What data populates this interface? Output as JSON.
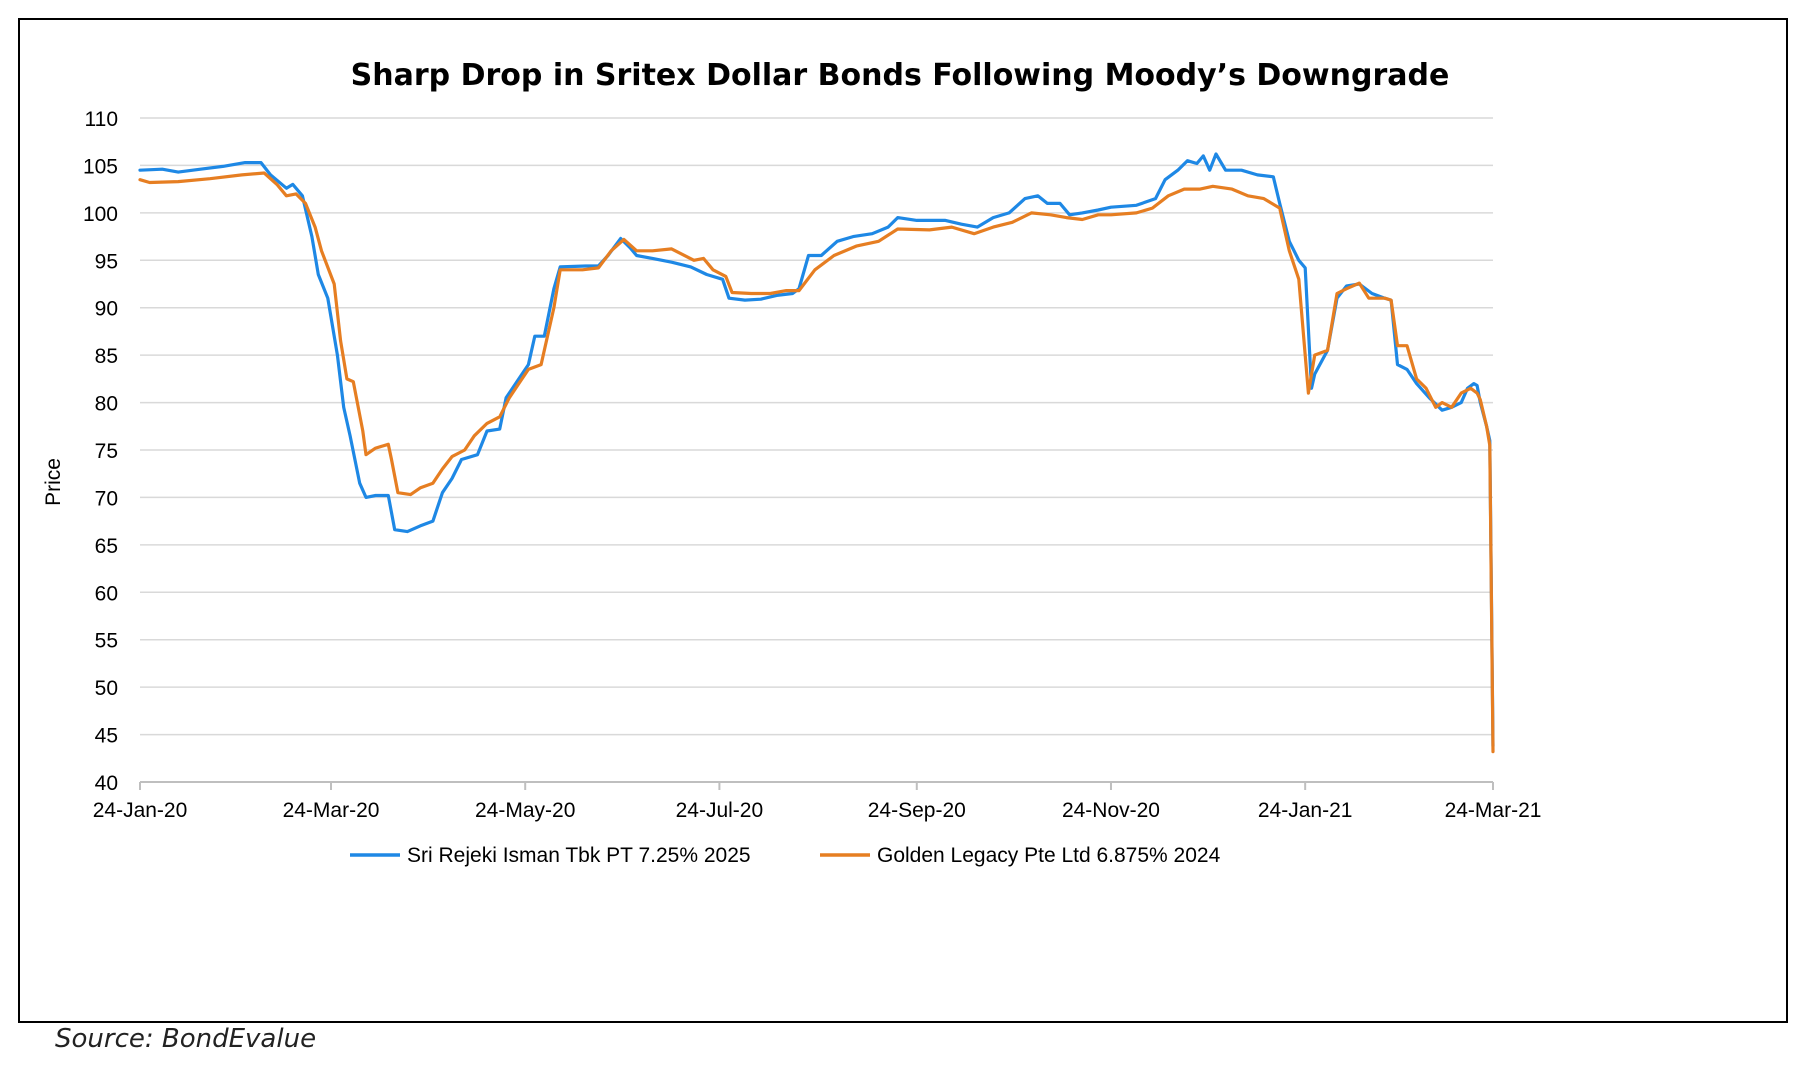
{
  "source_note": "Source: BondEvalue",
  "colors": {
    "series1": "#1e88e5",
    "series2": "#e67e22",
    "grid": "#d9d9d9",
    "axis": "#bfbfbf",
    "text": "#000000"
  },
  "chart_data": {
    "type": "line",
    "title": "Sharp Drop in Sritex Dollar Bonds Following Moody’s Downgrade",
    "xlabel": "",
    "ylabel": "Price",
    "ylim": [
      40,
      110
    ],
    "yticks": [
      40,
      45,
      50,
      55,
      60,
      65,
      70,
      75,
      80,
      85,
      90,
      95,
      100,
      105,
      110
    ],
    "xlim": [
      "2020-01-24",
      "2021-03-24"
    ],
    "xticks": [
      "2020-01-24",
      "2020-03-24",
      "2020-05-24",
      "2020-07-24",
      "2020-09-24",
      "2020-11-24",
      "2021-01-24",
      "2021-03-24"
    ],
    "xtick_labels": [
      "24-Jan-20",
      "24-Mar-20",
      "24-May-20",
      "24-Jul-20",
      "24-Sep-20",
      "24-Nov-20",
      "24-Jan-21",
      "24-Mar-21"
    ],
    "grid": "horizontal",
    "legend_position": "bottom",
    "series": [
      {
        "name": "Sri Rejeki Isman Tbk PT 7.25% 2025",
        "points": [
          [
            "2020-01-24",
            104.5
          ],
          [
            "2020-01-31",
            104.6
          ],
          [
            "2020-02-05",
            104.3
          ],
          [
            "2020-02-12",
            104.6
          ],
          [
            "2020-02-19",
            104.9
          ],
          [
            "2020-02-26",
            105.3
          ],
          [
            "2020-03-02",
            105.3
          ],
          [
            "2020-03-05",
            104.0
          ],
          [
            "2020-03-10",
            102.6
          ],
          [
            "2020-03-12",
            103.0
          ],
          [
            "2020-03-15",
            101.8
          ],
          [
            "2020-03-18",
            97.5
          ],
          [
            "2020-03-20",
            93.5
          ],
          [
            "2020-03-23",
            91.0
          ],
          [
            "2020-03-26",
            85.0
          ],
          [
            "2020-03-28",
            79.5
          ],
          [
            "2020-03-30",
            76.5
          ],
          [
            "2020-04-02",
            71.5
          ],
          [
            "2020-04-04",
            70.0
          ],
          [
            "2020-04-07",
            70.2
          ],
          [
            "2020-04-11",
            70.2
          ],
          [
            "2020-04-13",
            66.6
          ],
          [
            "2020-04-17",
            66.4
          ],
          [
            "2020-04-21",
            67.0
          ],
          [
            "2020-04-25",
            67.5
          ],
          [
            "2020-04-28",
            70.5
          ],
          [
            "2020-05-01",
            72.0
          ],
          [
            "2020-05-04",
            74.0
          ],
          [
            "2020-05-09",
            74.5
          ],
          [
            "2020-05-12",
            77.0
          ],
          [
            "2020-05-16",
            77.2
          ],
          [
            "2020-05-18",
            80.5
          ],
          [
            "2020-05-22",
            82.5
          ],
          [
            "2020-05-25",
            84.0
          ],
          [
            "2020-05-27",
            87.0
          ],
          [
            "2020-05-30",
            87.0
          ],
          [
            "2020-06-02",
            92.0
          ],
          [
            "2020-06-04",
            94.3
          ],
          [
            "2020-06-12",
            94.4
          ],
          [
            "2020-06-16",
            94.4
          ],
          [
            "2020-06-19",
            95.5
          ],
          [
            "2020-06-23",
            97.3
          ],
          [
            "2020-06-26",
            96.3
          ],
          [
            "2020-06-28",
            95.5
          ],
          [
            "2020-07-03",
            95.2
          ],
          [
            "2020-07-09",
            94.8
          ],
          [
            "2020-07-15",
            94.3
          ],
          [
            "2020-07-20",
            93.5
          ],
          [
            "2020-07-25",
            93.0
          ],
          [
            "2020-07-27",
            91.0
          ],
          [
            "2020-08-01",
            90.8
          ],
          [
            "2020-08-06",
            90.9
          ],
          [
            "2020-08-11",
            91.3
          ],
          [
            "2020-08-16",
            91.5
          ],
          [
            "2020-08-18",
            92.0
          ],
          [
            "2020-08-21",
            95.5
          ],
          [
            "2020-08-25",
            95.5
          ],
          [
            "2020-08-30",
            97.0
          ],
          [
            "2020-09-04",
            97.5
          ],
          [
            "2020-09-10",
            97.8
          ],
          [
            "2020-09-15",
            98.5
          ],
          [
            "2020-09-18",
            99.5
          ],
          [
            "2020-09-24",
            99.2
          ],
          [
            "2020-10-03",
            99.2
          ],
          [
            "2020-10-08",
            98.8
          ],
          [
            "2020-10-13",
            98.5
          ],
          [
            "2020-10-18",
            99.5
          ],
          [
            "2020-10-23",
            100.0
          ],
          [
            "2020-10-28",
            101.5
          ],
          [
            "2020-11-01",
            101.8
          ],
          [
            "2020-11-04",
            101.0
          ],
          [
            "2020-11-08",
            101.0
          ],
          [
            "2020-11-11",
            99.8
          ],
          [
            "2020-11-15",
            100.0
          ],
          [
            "2020-11-20",
            100.3
          ],
          [
            "2020-11-24",
            100.6
          ],
          [
            "2020-12-02",
            100.8
          ],
          [
            "2020-12-08",
            101.5
          ],
          [
            "2020-12-11",
            103.5
          ],
          [
            "2020-12-15",
            104.5
          ],
          [
            "2020-12-18",
            105.5
          ],
          [
            "2020-12-21",
            105.2
          ],
          [
            "2020-12-23",
            106.0
          ],
          [
            "2020-12-25",
            104.5
          ],
          [
            "2020-12-27",
            106.2
          ],
          [
            "2020-12-30",
            104.5
          ],
          [
            "2021-01-04",
            104.5
          ],
          [
            "2021-01-09",
            104.0
          ],
          [
            "2021-01-14",
            103.8
          ],
          [
            "2021-01-16",
            101.0
          ],
          [
            "2021-01-19",
            97.0
          ],
          [
            "2021-01-22",
            95.0
          ],
          [
            "2021-01-24",
            94.2
          ],
          [
            "2021-01-26",
            81.5
          ],
          [
            "2021-01-27",
            83.0
          ],
          [
            "2021-01-31",
            85.5
          ],
          [
            "2021-02-03",
            91.0
          ],
          [
            "2021-02-06",
            92.3
          ],
          [
            "2021-02-10",
            92.5
          ],
          [
            "2021-02-14",
            91.5
          ],
          [
            "2021-02-18",
            91.0
          ],
          [
            "2021-02-20",
            90.8
          ],
          [
            "2021-02-22",
            84.0
          ],
          [
            "2021-02-25",
            83.5
          ],
          [
            "2021-02-28",
            82.0
          ],
          [
            "2021-03-04",
            80.5
          ],
          [
            "2021-03-08",
            79.2
          ],
          [
            "2021-03-11",
            79.5
          ],
          [
            "2021-03-14",
            80.0
          ],
          [
            "2021-03-16",
            81.5
          ],
          [
            "2021-03-18",
            82.0
          ],
          [
            "2021-03-19",
            81.8
          ],
          [
            "2021-03-20",
            80.0
          ],
          [
            "2021-03-22",
            77.5
          ],
          [
            "2021-03-23",
            76.0
          ],
          [
            "2021-03-24",
            43.8
          ]
        ]
      },
      {
        "name": "Golden Legacy Pte Ltd 6.875% 2024",
        "points": [
          [
            "2020-01-24",
            103.5
          ],
          [
            "2020-01-27",
            103.2
          ],
          [
            "2020-02-05",
            103.3
          ],
          [
            "2020-02-15",
            103.6
          ],
          [
            "2020-02-25",
            104.0
          ],
          [
            "2020-03-03",
            104.2
          ],
          [
            "2020-03-07",
            103.0
          ],
          [
            "2020-03-10",
            101.8
          ],
          [
            "2020-03-13",
            102.0
          ],
          [
            "2020-03-16",
            101.0
          ],
          [
            "2020-03-19",
            98.5
          ],
          [
            "2020-03-21",
            96.0
          ],
          [
            "2020-03-25",
            92.5
          ],
          [
            "2020-03-27",
            86.5
          ],
          [
            "2020-03-29",
            82.5
          ],
          [
            "2020-03-31",
            82.2
          ],
          [
            "2020-04-03",
            77.0
          ],
          [
            "2020-04-04",
            74.5
          ],
          [
            "2020-04-07",
            75.2
          ],
          [
            "2020-04-11",
            75.6
          ],
          [
            "2020-04-12",
            74.0
          ],
          [
            "2020-04-14",
            70.5
          ],
          [
            "2020-04-18",
            70.3
          ],
          [
            "2020-04-21",
            71.0
          ],
          [
            "2020-04-25",
            71.5
          ],
          [
            "2020-04-28",
            73.0
          ],
          [
            "2020-05-01",
            74.3
          ],
          [
            "2020-05-05",
            75.0
          ],
          [
            "2020-05-08",
            76.5
          ],
          [
            "2020-05-12",
            77.8
          ],
          [
            "2020-05-16",
            78.5
          ],
          [
            "2020-05-19",
            80.5
          ],
          [
            "2020-05-22",
            82.0
          ],
          [
            "2020-05-25",
            83.5
          ],
          [
            "2020-05-29",
            84.0
          ],
          [
            "2020-06-02",
            90.0
          ],
          [
            "2020-06-04",
            94.0
          ],
          [
            "2020-06-11",
            94.0
          ],
          [
            "2020-06-16",
            94.2
          ],
          [
            "2020-06-20",
            96.0
          ],
          [
            "2020-06-24",
            97.2
          ],
          [
            "2020-06-28",
            96.0
          ],
          [
            "2020-07-03",
            96.0
          ],
          [
            "2020-07-09",
            96.2
          ],
          [
            "2020-07-16",
            95.0
          ],
          [
            "2020-07-19",
            95.2
          ],
          [
            "2020-07-22",
            94.0
          ],
          [
            "2020-07-26",
            93.3
          ],
          [
            "2020-07-28",
            91.6
          ],
          [
            "2020-08-03",
            91.5
          ],
          [
            "2020-08-09",
            91.5
          ],
          [
            "2020-08-14",
            91.8
          ],
          [
            "2020-08-18",
            91.8
          ],
          [
            "2020-08-23",
            94.0
          ],
          [
            "2020-08-29",
            95.5
          ],
          [
            "2020-09-05",
            96.5
          ],
          [
            "2020-09-12",
            97.0
          ],
          [
            "2020-09-18",
            98.3
          ],
          [
            "2020-09-28",
            98.2
          ],
          [
            "2020-10-05",
            98.5
          ],
          [
            "2020-10-12",
            97.8
          ],
          [
            "2020-10-18",
            98.5
          ],
          [
            "2020-10-24",
            99.0
          ],
          [
            "2020-10-30",
            100.0
          ],
          [
            "2020-11-05",
            99.8
          ],
          [
            "2020-11-10",
            99.5
          ],
          [
            "2020-11-15",
            99.3
          ],
          [
            "2020-11-20",
            99.8
          ],
          [
            "2020-11-24",
            99.8
          ],
          [
            "2020-12-02",
            100.0
          ],
          [
            "2020-12-07",
            100.5
          ],
          [
            "2020-12-12",
            101.8
          ],
          [
            "2020-12-17",
            102.5
          ],
          [
            "2020-12-22",
            102.5
          ],
          [
            "2020-12-26",
            102.8
          ],
          [
            "2021-01-01",
            102.5
          ],
          [
            "2021-01-06",
            101.8
          ],
          [
            "2021-01-11",
            101.5
          ],
          [
            "2021-01-16",
            100.5
          ],
          [
            "2021-01-19",
            96.0
          ],
          [
            "2021-01-22",
            93.0
          ],
          [
            "2021-01-25",
            81.0
          ],
          [
            "2021-01-27",
            85.0
          ],
          [
            "2021-01-31",
            85.5
          ],
          [
            "2021-02-03",
            91.5
          ],
          [
            "2021-02-06",
            92.0
          ],
          [
            "2021-02-10",
            92.6
          ],
          [
            "2021-02-13",
            91.0
          ],
          [
            "2021-02-18",
            91.0
          ],
          [
            "2021-02-20",
            90.8
          ],
          [
            "2021-02-22",
            86.0
          ],
          [
            "2021-02-25",
            86.0
          ],
          [
            "2021-02-28",
            82.5
          ],
          [
            "2021-03-03",
            81.5
          ],
          [
            "2021-03-06",
            79.5
          ],
          [
            "2021-03-08",
            80.0
          ],
          [
            "2021-03-11",
            79.5
          ],
          [
            "2021-03-14",
            81.0
          ],
          [
            "2021-03-17",
            81.5
          ],
          [
            "2021-03-19",
            81.0
          ],
          [
            "2021-03-20",
            80.3
          ],
          [
            "2021-03-22",
            77.5
          ],
          [
            "2021-03-23",
            75.5
          ],
          [
            "2021-03-24",
            43.2
          ]
        ]
      }
    ]
  }
}
